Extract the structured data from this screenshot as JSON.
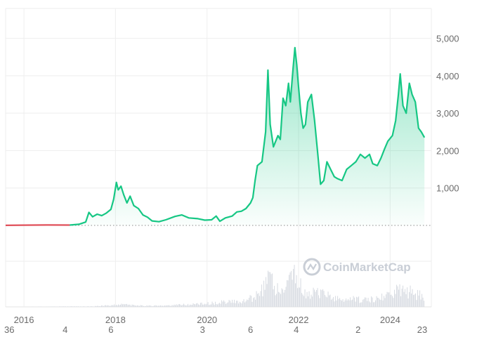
{
  "chart_data": {
    "type": "area",
    "x_unit": "year",
    "y_ticks": [
      1000,
      2000,
      3000,
      4000,
      5000
    ],
    "y_tick_labels": [
      "1,000",
      "2,000",
      "3,000",
      "4,000",
      "5,000"
    ],
    "ylim": [
      0,
      5800
    ],
    "xlim": [
      2015.6,
      2024.9
    ],
    "x_ticks": [
      2016,
      2018,
      2020,
      2022,
      2024
    ],
    "x_tick_labels": [
      "2016",
      "2018",
      "2020",
      "2022",
      "2024"
    ],
    "x_minor_labels": [
      {
        "x": 2015.68,
        "label": "36"
      },
      {
        "x": 2016.9,
        "label": "4"
      },
      {
        "x": 2017.9,
        "label": "6"
      },
      {
        "x": 2019.9,
        "label": "3"
      },
      {
        "x": 2020.95,
        "label": "6"
      },
      {
        "x": 2021.95,
        "label": "4"
      },
      {
        "x": 2023.3,
        "label": "2"
      },
      {
        "x": 2024.7,
        "label": "23"
      }
    ],
    "grid": true,
    "colors": {
      "line": "#16c784",
      "fill": "#16c784",
      "early_line": "#e0505a",
      "grid": "#eeeeee",
      "volume": "#d9dde3"
    },
    "series": [
      {
        "values": [
          [
            2015.6,
            1
          ],
          [
            2016.0,
            8
          ],
          [
            2016.5,
            12
          ],
          [
            2017.0,
            10
          ],
          [
            2017.2,
            30
          ],
          [
            2017.35,
            90
          ],
          [
            2017.42,
            350
          ],
          [
            2017.5,
            230
          ],
          [
            2017.6,
            300
          ],
          [
            2017.7,
            260
          ],
          [
            2017.8,
            330
          ],
          [
            2017.9,
            430
          ],
          [
            2017.96,
            700
          ],
          [
            2018.02,
            1150
          ],
          [
            2018.06,
            950
          ],
          [
            2018.12,
            1050
          ],
          [
            2018.18,
            820
          ],
          [
            2018.25,
            600
          ],
          [
            2018.32,
            780
          ],
          [
            2018.4,
            530
          ],
          [
            2018.5,
            450
          ],
          [
            2018.6,
            280
          ],
          [
            2018.7,
            220
          ],
          [
            2018.8,
            120
          ],
          [
            2018.95,
            100
          ],
          [
            2019.1,
            150
          ],
          [
            2019.3,
            240
          ],
          [
            2019.45,
            280
          ],
          [
            2019.6,
            200
          ],
          [
            2019.8,
            180
          ],
          [
            2019.95,
            140
          ],
          [
            2020.1,
            150
          ],
          [
            2020.2,
            250
          ],
          [
            2020.28,
            110
          ],
          [
            2020.4,
            200
          ],
          [
            2020.55,
            250
          ],
          [
            2020.65,
            360
          ],
          [
            2020.75,
            380
          ],
          [
            2020.85,
            450
          ],
          [
            2020.95,
            600
          ],
          [
            2021.0,
            740
          ],
          [
            2021.05,
            1200
          ],
          [
            2021.1,
            1600
          ],
          [
            2021.2,
            1700
          ],
          [
            2021.28,
            2500
          ],
          [
            2021.33,
            4150
          ],
          [
            2021.38,
            2700
          ],
          [
            2021.45,
            2100
          ],
          [
            2021.55,
            2400
          ],
          [
            2021.6,
            2300
          ],
          [
            2021.66,
            3400
          ],
          [
            2021.72,
            3200
          ],
          [
            2021.78,
            3800
          ],
          [
            2021.82,
            3300
          ],
          [
            2021.88,
            4200
          ],
          [
            2021.92,
            4750
          ],
          [
            2021.96,
            4300
          ],
          [
            2022.0,
            3700
          ],
          [
            2022.05,
            3000
          ],
          [
            2022.1,
            2600
          ],
          [
            2022.15,
            2700
          ],
          [
            2022.2,
            3300
          ],
          [
            2022.28,
            3500
          ],
          [
            2022.35,
            2800
          ],
          [
            2022.42,
            1900
          ],
          [
            2022.48,
            1100
          ],
          [
            2022.55,
            1200
          ],
          [
            2022.62,
            1700
          ],
          [
            2022.7,
            1500
          ],
          [
            2022.78,
            1300
          ],
          [
            2022.85,
            1250
          ],
          [
            2022.95,
            1200
          ],
          [
            2023.05,
            1500
          ],
          [
            2023.15,
            1600
          ],
          [
            2023.25,
            1700
          ],
          [
            2023.35,
            1900
          ],
          [
            2023.45,
            1800
          ],
          [
            2023.55,
            1900
          ],
          [
            2023.62,
            1650
          ],
          [
            2023.72,
            1600
          ],
          [
            2023.8,
            1800
          ],
          [
            2023.88,
            2050
          ],
          [
            2023.95,
            2250
          ],
          [
            2024.05,
            2400
          ],
          [
            2024.12,
            2800
          ],
          [
            2024.18,
            3500
          ],
          [
            2024.22,
            4050
          ],
          [
            2024.28,
            3200
          ],
          [
            2024.35,
            3000
          ],
          [
            2024.42,
            3800
          ],
          [
            2024.48,
            3500
          ],
          [
            2024.55,
            3300
          ],
          [
            2024.62,
            2600
          ],
          [
            2024.68,
            2500
          ],
          [
            2024.75,
            2350
          ]
        ]
      }
    ],
    "volume": [
      [
        2015.6,
        0
      ],
      [
        2017.5,
        1
      ],
      [
        2017.95,
        3
      ],
      [
        2018.1,
        5
      ],
      [
        2018.3,
        3
      ],
      [
        2018.6,
        2
      ],
      [
        2019.0,
        2
      ],
      [
        2019.5,
        4
      ],
      [
        2020.0,
        6
      ],
      [
        2020.4,
        9
      ],
      [
        2020.8,
        10
      ],
      [
        2021.0,
        18
      ],
      [
        2021.2,
        30
      ],
      [
        2021.35,
        48
      ],
      [
        2021.5,
        33
      ],
      [
        2021.7,
        28
      ],
      [
        2021.85,
        58
      ],
      [
        2022.0,
        40
      ],
      [
        2022.2,
        24
      ],
      [
        2022.45,
        26
      ],
      [
        2022.7,
        18
      ],
      [
        2022.9,
        16
      ],
      [
        2023.2,
        14
      ],
      [
        2023.5,
        12
      ],
      [
        2023.8,
        16
      ],
      [
        2024.0,
        20
      ],
      [
        2024.2,
        34
      ],
      [
        2024.5,
        26
      ],
      [
        2024.75,
        18
      ]
    ]
  },
  "watermark": {
    "text": "CoinMarketCap"
  }
}
